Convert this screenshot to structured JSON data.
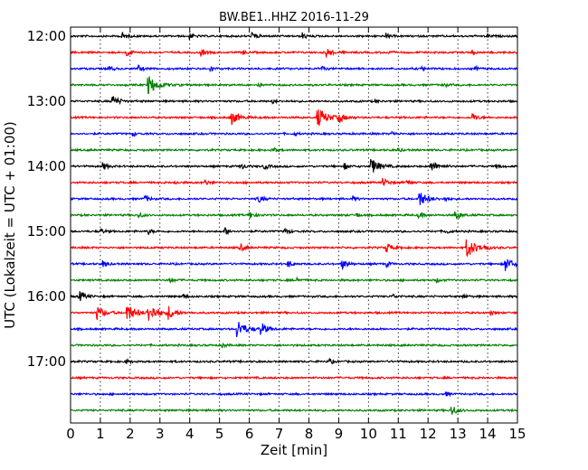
{
  "chart_data": {
    "type": "line",
    "title": "BW.BE1..HHZ 2016-11-29",
    "xlabel": "Zeit  [min]",
    "ylabel": "UTC (Lokalzeit = UTC + 01:00)",
    "xlim": [
      0,
      15
    ],
    "x_ticks": [
      "0",
      "1",
      "2",
      "3",
      "4",
      "5",
      "6",
      "7",
      "8",
      "9",
      "10",
      "11",
      "12",
      "13",
      "14",
      "15"
    ],
    "y_tick_labels": [
      "12:00",
      "13:00",
      "14:00",
      "15:00",
      "16:00",
      "17:00"
    ],
    "grid": {
      "vertical": true,
      "style": "dotted"
    },
    "trace_colors": [
      "#000000",
      "#ff0000",
      "#0000ff",
      "#008000"
    ],
    "trace_interval_minutes": 15,
    "start_time": "12:00",
    "traces": [
      {
        "start": "12:00",
        "events": [
          [
            1.7,
            0.4
          ],
          [
            4.0,
            0.3
          ],
          [
            6.1,
            0.35
          ],
          [
            7.8,
            0.3
          ],
          [
            10.6,
            0.25
          ],
          [
            14.0,
            0.2
          ]
        ]
      },
      {
        "start": "12:15",
        "events": [
          [
            1.9,
            0.35
          ],
          [
            4.4,
            0.35
          ],
          [
            5.8,
            0.2
          ],
          [
            8.6,
            0.5
          ],
          [
            10.6,
            0.2
          ],
          [
            13.5,
            0.2
          ]
        ]
      },
      {
        "start": "12:30",
        "events": [
          [
            1.3,
            0.3
          ],
          [
            2.3,
            0.3
          ],
          [
            4.7,
            0.25
          ],
          [
            8.4,
            0.25
          ],
          [
            11.8,
            0.2
          ],
          [
            13.6,
            0.2
          ]
        ]
      },
      {
        "start": "12:45",
        "events": [
          [
            2.6,
            1.0
          ],
          [
            6.3,
            0.2
          ],
          [
            12.5,
            0.25
          ]
        ]
      },
      {
        "start": "13:00",
        "events": [
          [
            1.4,
            0.6
          ],
          [
            6.8,
            0.2
          ],
          [
            10.2,
            0.2
          ]
        ]
      },
      {
        "start": "13:15",
        "events": [
          [
            5.4,
            0.7
          ],
          [
            8.3,
            1.0
          ],
          [
            9.0,
            0.5
          ],
          [
            13.5,
            0.4
          ]
        ]
      },
      {
        "start": "13:30",
        "events": [
          [
            2.1,
            0.2
          ],
          [
            7.5,
            0.2
          ],
          [
            10.8,
            0.2
          ]
        ]
      },
      {
        "start": "13:45",
        "events": [
          [
            6.8,
            0.3
          ],
          [
            11.0,
            0.2
          ]
        ]
      },
      {
        "start": "14:00",
        "events": [
          [
            1.1,
            0.35
          ],
          [
            5.7,
            0.35
          ],
          [
            6.5,
            0.3
          ],
          [
            9.2,
            0.3
          ],
          [
            10.1,
            0.8
          ],
          [
            12.1,
            0.6
          ],
          [
            14.3,
            0.25
          ]
        ]
      },
      {
        "start": "14:15",
        "events": [
          [
            3.5,
            0.2
          ],
          [
            4.5,
            0.3
          ],
          [
            10.5,
            0.45
          ],
          [
            11.3,
            0.25
          ]
        ]
      },
      {
        "start": "14:30",
        "events": [
          [
            2.5,
            0.35
          ],
          [
            6.3,
            0.4
          ],
          [
            9.5,
            0.25
          ],
          [
            11.7,
            0.8
          ],
          [
            12.6,
            0.2
          ]
        ]
      },
      {
        "start": "14:45",
        "events": [
          [
            2.3,
            0.3
          ],
          [
            6.0,
            0.4
          ],
          [
            9.6,
            0.2
          ],
          [
            11.7,
            0.3
          ],
          [
            12.9,
            0.5
          ]
        ]
      },
      {
        "start": "15:00",
        "events": [
          [
            1.0,
            0.3
          ],
          [
            2.6,
            0.3
          ],
          [
            5.2,
            0.35
          ],
          [
            7.2,
            0.3
          ],
          [
            12.6,
            0.25
          ]
        ]
      },
      {
        "start": "15:15",
        "events": [
          [
            5.7,
            0.35
          ],
          [
            10.6,
            0.5
          ],
          [
            13.3,
            1.0
          ],
          [
            13.9,
            0.2
          ]
        ]
      },
      {
        "start": "15:30",
        "events": [
          [
            1.1,
            0.3
          ],
          [
            7.3,
            0.35
          ],
          [
            9.1,
            0.5
          ],
          [
            10.6,
            0.25
          ],
          [
            14.6,
            0.7
          ]
        ]
      },
      {
        "start": "15:45",
        "events": [
          [
            3.3,
            0.35
          ],
          [
            7.6,
            0.25
          ],
          [
            12.3,
            0.2
          ]
        ]
      },
      {
        "start": "16:00",
        "events": [
          [
            0.3,
            0.5
          ],
          [
            3.8,
            0.2
          ],
          [
            10.8,
            0.25
          ],
          [
            13.2,
            0.2
          ]
        ]
      },
      {
        "start": "16:15",
        "events": [
          [
            0.9,
            0.7
          ],
          [
            1.9,
            0.9
          ],
          [
            2.6,
            1.0
          ],
          [
            3.3,
            0.6
          ],
          [
            14.1,
            0.2
          ]
        ]
      },
      {
        "start": "16:30",
        "events": [
          [
            5.6,
            0.9
          ],
          [
            6.4,
            0.6
          ]
        ]
      },
      {
        "start": "16:45",
        "events": [
          [
            5.1,
            0.2
          ]
        ]
      },
      {
        "start": "17:00",
        "events": [
          [
            1.9,
            0.2
          ],
          [
            8.7,
            0.25
          ]
        ]
      },
      {
        "start": "17:15",
        "events": []
      },
      {
        "start": "17:30",
        "events": [
          [
            12.6,
            0.2
          ]
        ]
      },
      {
        "start": "17:45",
        "events": [
          [
            12.8,
            0.5
          ]
        ]
      }
    ]
  }
}
